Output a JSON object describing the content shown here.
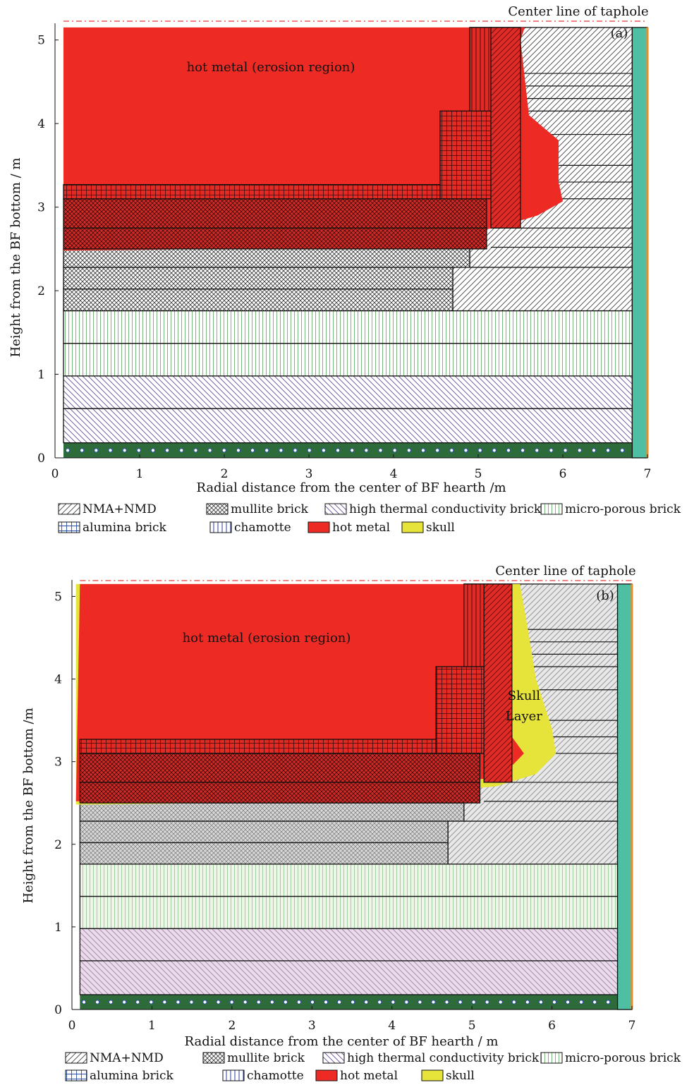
{
  "panels": [
    {
      "id": "a",
      "tag": "(a)",
      "taphole_label": "Center line of taphole",
      "region_label": "hot metal (erosion region)",
      "skull_label_1": "",
      "skull_label_2": "",
      "xlabel": "Radial distance from the center of BF hearth /m",
      "ylabel": "Height from the BF bottom / m",
      "xticks": [
        "0",
        "1",
        "2",
        "3",
        "4",
        "5",
        "6",
        "7"
      ],
      "yticks": [
        "0",
        "1",
        "2",
        "3",
        "4",
        "5"
      ]
    },
    {
      "id": "b",
      "tag": "(b)",
      "taphole_label": "Center line of taphole",
      "region_label": "hot metal (erosion region)",
      "skull_label_1": "Skull",
      "skull_label_2": "Layer",
      "xlabel": "Radial distance from the center of BF hearth / m",
      "ylabel": "Height from the BF bottom /m",
      "xticks": [
        "0",
        "1",
        "2",
        "3",
        "4",
        "5",
        "6",
        "7"
      ],
      "yticks": [
        "0",
        "1",
        "2",
        "3",
        "4",
        "5"
      ]
    }
  ],
  "legend_a": [
    "NMA+NMD",
    "mullite brick",
    "high thermal conductivity brick",
    "micro-porous brick",
    "alumina brick",
    "chamotte",
    "hot metal",
    "skull"
  ],
  "legend_b": [
    "NMA+NMD",
    "mullite brick",
    "high thermal conductivity brick",
    "micro-porous brick",
    "alumina brick",
    "chamotte",
    "hot metal",
    "skull"
  ],
  "colors": {
    "hot_metal": "#ee2a24",
    "skull": "#e6e33a",
    "cooling": "#4fbfa3",
    "green": "#2e6b3a"
  },
  "chart_data": [
    {
      "type": "diagram",
      "title": "",
      "xlabel": "Radial distance from the center of BF hearth /m",
      "ylabel": "Height from the BF bottom / m",
      "xlim": [
        0,
        7
      ],
      "ylim": [
        0,
        5.2
      ],
      "taphole_height": 5.15,
      "erosion_boundary": [
        [
          0.1,
          2.48
        ],
        [
          2,
          2.5
        ],
        [
          4,
          2.6
        ],
        [
          5.2,
          2.75
        ],
        [
          5.7,
          2.9
        ],
        [
          6.0,
          3.07
        ],
        [
          5.95,
          3.3
        ],
        [
          5.95,
          3.8
        ],
        [
          5.6,
          4.1
        ],
        [
          5.5,
          5.0
        ],
        [
          5.55,
          5.15
        ]
      ]
    },
    {
      "type": "diagram",
      "title": "",
      "xlabel": "Radial distance from the center of BF hearth / m",
      "ylabel": "Height from the BF bottom /m",
      "xlim": [
        0,
        7
      ],
      "ylim": [
        0,
        5.2
      ],
      "taphole_height": 5.15,
      "erosion_boundary": [
        [
          0.05,
          2.52
        ],
        [
          2,
          2.55
        ],
        [
          4,
          2.65
        ],
        [
          5.2,
          2.8
        ],
        [
          5.5,
          2.95
        ],
        [
          5.65,
          3.1
        ],
        [
          5.5,
          3.3
        ],
        [
          5.4,
          3.8
        ],
        [
          5.3,
          4.3
        ],
        [
          5.2,
          5.15
        ]
      ],
      "skull_outer_boundary": [
        [
          0.05,
          2.48
        ],
        [
          2,
          2.5
        ],
        [
          4,
          2.6
        ],
        [
          5.3,
          2.7
        ],
        [
          5.8,
          2.85
        ],
        [
          6.05,
          3.1
        ],
        [
          6.0,
          3.4
        ],
        [
          5.8,
          4.0
        ],
        [
          5.7,
          4.6
        ],
        [
          5.6,
          5.15
        ]
      ]
    }
  ]
}
